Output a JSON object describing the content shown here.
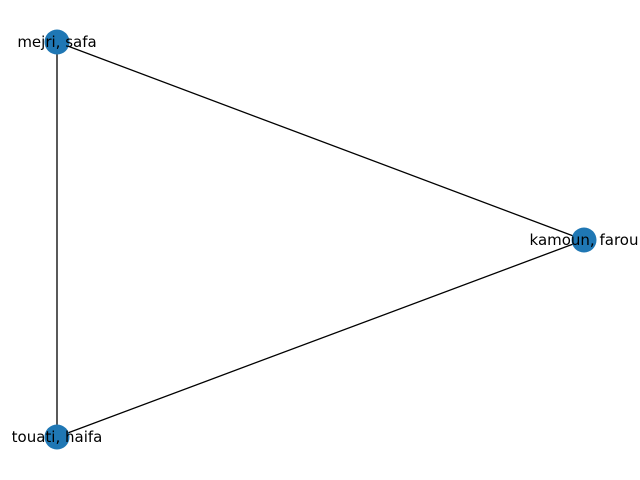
{
  "graph": {
    "node_color": "#1f77b4",
    "edge_color": "#000000",
    "nodes": [
      {
        "id": "mejri",
        "label": "mejri, safa"
      },
      {
        "id": "kamoun",
        "label": "kamoun, farou"
      },
      {
        "id": "touati",
        "label": "touati, haifa"
      }
    ],
    "edges": [
      {
        "source": "mejri",
        "target": "kamoun"
      },
      {
        "source": "mejri",
        "target": "touati"
      },
      {
        "source": "kamoun",
        "target": "touati"
      }
    ]
  }
}
